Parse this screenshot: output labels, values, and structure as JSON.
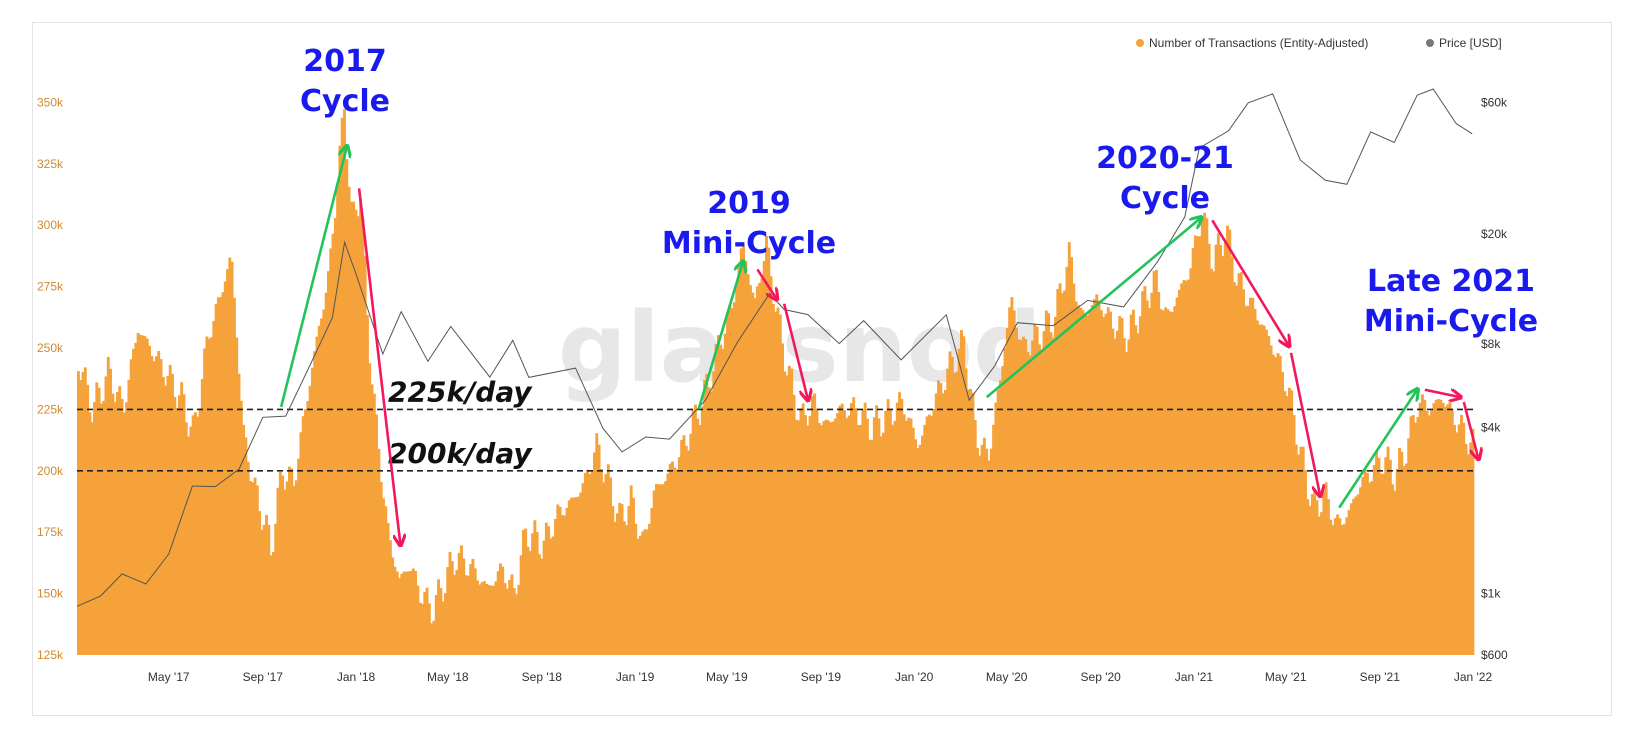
{
  "watermark": "glassnode",
  "colors": {
    "bars": "#f6a23a",
    "price": "#555555",
    "up": "#22c35a",
    "down": "#f2185a",
    "annotation": "#1a1aee",
    "left_ticks": "#d08a2e"
  },
  "chart_data": {
    "type": "bar",
    "title": "",
    "xlabel": "",
    "ylabel": "",
    "legend": {
      "placement": "top-right",
      "entries": [
        {
          "label": "Number of Transactions (Entity-Adjusted)",
          "color": "#f6a23a"
        },
        {
          "label": "Price [USD]",
          "color": "#777777"
        }
      ]
    },
    "grid": false,
    "x_range": [
      "2017-01-01",
      "2022-01-01"
    ],
    "x_ticks": [
      {
        "label": "May '17",
        "date": "2017-05-01"
      },
      {
        "label": "Sep '17",
        "date": "2017-09-01"
      },
      {
        "label": "Jan '18",
        "date": "2018-01-01"
      },
      {
        "label": "May '18",
        "date": "2018-05-01"
      },
      {
        "label": "Sep '18",
        "date": "2018-09-01"
      },
      {
        "label": "Jan '19",
        "date": "2019-01-01"
      },
      {
        "label": "May '19",
        "date": "2019-05-01"
      },
      {
        "label": "Sep '19",
        "date": "2019-09-01"
      },
      {
        "label": "Jan '20",
        "date": "2020-01-01"
      },
      {
        "label": "May '20",
        "date": "2020-05-01"
      },
      {
        "label": "Sep '20",
        "date": "2020-09-01"
      },
      {
        "label": "Jan '21",
        "date": "2021-01-01"
      },
      {
        "label": "May '21",
        "date": "2021-05-01"
      },
      {
        "label": "Sep '21",
        "date": "2021-09-01"
      },
      {
        "label": "Jan '22",
        "date": "2022-01-01"
      }
    ],
    "y_left": {
      "range": [
        125000,
        375000
      ],
      "ticks": [
        {
          "label": "125k",
          "value": 125000
        },
        {
          "label": "150k",
          "value": 150000
        },
        {
          "label": "175k",
          "value": 175000
        },
        {
          "label": "200k",
          "value": 200000
        },
        {
          "label": "225k",
          "value": 225000
        },
        {
          "label": "250k",
          "value": 250000
        },
        {
          "label": "275k",
          "value": 275000
        },
        {
          "label": "300k",
          "value": 300000
        },
        {
          "label": "325k",
          "value": 325000
        },
        {
          "label": "350k",
          "value": 350000
        }
      ]
    },
    "y_right": {
      "scale": "log",
      "range": [
        600,
        100000
      ],
      "ticks": [
        {
          "label": "$600",
          "value": 600
        },
        {
          "label": "$1k",
          "value": 1000
        },
        {
          "label": "$4k",
          "value": 4000
        },
        {
          "label": "$8k",
          "value": 8000
        },
        {
          "label": "$20k",
          "value": 20000
        },
        {
          "label": "$60k",
          "value": 60000
        }
      ]
    },
    "series": [
      {
        "name": "Number of Transactions (Entity-Adjusted)",
        "type": "bar",
        "points": [
          [
            "2017-01-01",
            245000
          ],
          [
            "2017-01-20",
            225000
          ],
          [
            "2017-02-10",
            240000
          ],
          [
            "2017-03-01",
            225000
          ],
          [
            "2017-03-20",
            258000
          ],
          [
            "2017-04-05",
            250000
          ],
          [
            "2017-04-25",
            240000
          ],
          [
            "2017-05-15",
            230000
          ],
          [
            "2017-06-01",
            215000
          ],
          [
            "2017-06-20",
            255000
          ],
          [
            "2017-07-05",
            270000
          ],
          [
            "2017-07-20",
            288000
          ],
          [
            "2017-08-05",
            215000
          ],
          [
            "2017-08-20",
            192000
          ],
          [
            "2017-09-01",
            180000
          ],
          [
            "2017-09-10",
            168000
          ],
          [
            "2017-09-25",
            200000
          ],
          [
            "2017-10-10",
            195000
          ],
          [
            "2017-10-25",
            225000
          ],
          [
            "2017-11-10",
            255000
          ],
          [
            "2017-11-25",
            280000
          ],
          [
            "2017-12-05",
            315000
          ],
          [
            "2017-12-15",
            348000
          ],
          [
            "2017-12-25",
            300000
          ],
          [
            "2018-01-05",
            315000
          ],
          [
            "2018-01-15",
            258000
          ],
          [
            "2018-01-25",
            220000
          ],
          [
            "2018-02-10",
            175000
          ],
          [
            "2018-02-25",
            155000
          ],
          [
            "2018-03-10",
            162000
          ],
          [
            "2018-03-25",
            150000
          ],
          [
            "2018-04-10",
            143000
          ],
          [
            "2018-04-25",
            155000
          ],
          [
            "2018-05-10",
            165000
          ],
          [
            "2018-06-01",
            160000
          ],
          [
            "2018-06-20",
            152000
          ],
          [
            "2018-07-10",
            160000
          ],
          [
            "2018-07-25",
            150000
          ],
          [
            "2018-08-10",
            175000
          ],
          [
            "2018-09-01",
            170000
          ],
          [
            "2018-09-20",
            182000
          ],
          [
            "2018-10-10",
            188000
          ],
          [
            "2018-10-25",
            195000
          ],
          [
            "2018-11-10",
            210000
          ],
          [
            "2018-11-25",
            196000
          ],
          [
            "2018-12-10",
            180000
          ],
          [
            "2018-12-25",
            188000
          ],
          [
            "2019-01-10",
            170000
          ],
          [
            "2019-01-25",
            192000
          ],
          [
            "2019-02-10",
            198000
          ],
          [
            "2019-03-01",
            208000
          ],
          [
            "2019-03-20",
            222000
          ],
          [
            "2019-04-05",
            235000
          ],
          [
            "2019-04-20",
            252000
          ],
          [
            "2019-05-05",
            265000
          ],
          [
            "2019-05-20",
            292000
          ],
          [
            "2019-06-05",
            268000
          ],
          [
            "2019-06-20",
            292000
          ],
          [
            "2019-07-05",
            262000
          ],
          [
            "2019-07-20",
            238000
          ],
          [
            "2019-08-05",
            220000
          ],
          [
            "2019-08-20",
            228000
          ],
          [
            "2019-09-05",
            218000
          ],
          [
            "2019-09-25",
            225000
          ],
          [
            "2019-10-15",
            225000
          ],
          [
            "2019-11-05",
            218000
          ],
          [
            "2019-11-25",
            222000
          ],
          [
            "2019-12-15",
            228000
          ],
          [
            "2020-01-05",
            210000
          ],
          [
            "2020-01-25",
            228000
          ],
          [
            "2020-02-15",
            242000
          ],
          [
            "2020-03-05",
            252000
          ],
          [
            "2020-03-20",
            215000
          ],
          [
            "2020-04-05",
            205000
          ],
          [
            "2020-04-20",
            235000
          ],
          [
            "2020-05-05",
            270000
          ],
          [
            "2020-05-20",
            250000
          ],
          [
            "2020-06-10",
            255000
          ],
          [
            "2020-07-01",
            262000
          ],
          [
            "2020-07-20",
            288000
          ],
          [
            "2020-08-05",
            262000
          ],
          [
            "2020-08-25",
            270000
          ],
          [
            "2020-09-15",
            260000
          ],
          [
            "2020-10-05",
            255000
          ],
          [
            "2020-10-25",
            268000
          ],
          [
            "2020-11-10",
            278000
          ],
          [
            "2020-11-25",
            262000
          ],
          [
            "2020-12-10",
            272000
          ],
          [
            "2020-12-25",
            282000
          ],
          [
            "2021-01-10",
            305000
          ],
          [
            "2021-01-25",
            285000
          ],
          [
            "2021-02-10",
            298000
          ],
          [
            "2021-02-25",
            278000
          ],
          [
            "2021-03-15",
            268000
          ],
          [
            "2021-04-01",
            258000
          ],
          [
            "2021-04-20",
            245000
          ],
          [
            "2021-05-05",
            230000
          ],
          [
            "2021-05-20",
            205000
          ],
          [
            "2021-06-05",
            185000
          ],
          [
            "2021-06-20",
            190000
          ],
          [
            "2021-07-05",
            178000
          ],
          [
            "2021-07-20",
            182000
          ],
          [
            "2021-08-05",
            195000
          ],
          [
            "2021-08-20",
            200000
          ],
          [
            "2021-09-05",
            205000
          ],
          [
            "2021-09-20",
            198000
          ],
          [
            "2021-10-05",
            210000
          ],
          [
            "2021-10-20",
            228000
          ],
          [
            "2021-11-05",
            225000
          ],
          [
            "2021-11-20",
            230000
          ],
          [
            "2021-12-05",
            222000
          ],
          [
            "2021-12-20",
            215000
          ],
          [
            "2021-12-31",
            210000
          ]
        ]
      },
      {
        "name": "Price [USD]",
        "type": "line",
        "points": [
          [
            "2017-01-01",
            900
          ],
          [
            "2017-02-01",
            1000
          ],
          [
            "2017-03-01",
            1150
          ],
          [
            "2017-04-01",
            1100
          ],
          [
            "2017-05-01",
            1400
          ],
          [
            "2017-06-01",
            2400
          ],
          [
            "2017-07-01",
            2500
          ],
          [
            "2017-08-01",
            2800
          ],
          [
            "2017-09-01",
            4300
          ],
          [
            "2017-10-01",
            4500
          ],
          [
            "2017-11-01",
            6500
          ],
          [
            "2017-12-01",
            10000
          ],
          [
            "2017-12-17",
            19000
          ],
          [
            "2018-01-01",
            14000
          ],
          [
            "2018-02-05",
            7500
          ],
          [
            "2018-03-01",
            10500
          ],
          [
            "2018-04-05",
            6800
          ],
          [
            "2018-05-05",
            9500
          ],
          [
            "2018-06-25",
            6000
          ],
          [
            "2018-07-25",
            8200
          ],
          [
            "2018-08-15",
            6200
          ],
          [
            "2018-10-15",
            6400
          ],
          [
            "2018-11-20",
            4000
          ],
          [
            "2018-12-15",
            3300
          ],
          [
            "2019-01-15",
            3600
          ],
          [
            "2019-02-15",
            3700
          ],
          [
            "2019-04-03",
            5000
          ],
          [
            "2019-05-15",
            8000
          ],
          [
            "2019-06-26",
            12500
          ],
          [
            "2019-07-15",
            10500
          ],
          [
            "2019-08-15",
            10200
          ],
          [
            "2019-09-25",
            8200
          ],
          [
            "2019-10-27",
            9500
          ],
          [
            "2019-12-15",
            7100
          ],
          [
            "2020-02-12",
            10300
          ],
          [
            "2020-03-13",
            4900
          ],
          [
            "2020-04-15",
            6800
          ],
          [
            "2020-05-15",
            9500
          ],
          [
            "2020-07-01",
            9200
          ],
          [
            "2020-08-15",
            11800
          ],
          [
            "2020-10-01",
            10700
          ],
          [
            "2020-11-15",
            16000
          ],
          [
            "2020-12-20",
            23500
          ],
          [
            "2021-01-08",
            40000
          ],
          [
            "2021-02-15",
            48000
          ],
          [
            "2021-03-13",
            60000
          ],
          [
            "2021-04-14",
            63000
          ],
          [
            "2021-05-20",
            38000
          ],
          [
            "2021-06-22",
            31000
          ],
          [
            "2021-07-20",
            30000
          ],
          [
            "2021-08-20",
            48000
          ],
          [
            "2021-09-20",
            42000
          ],
          [
            "2021-10-20",
            64000
          ],
          [
            "2021-11-10",
            68000
          ],
          [
            "2021-12-10",
            49000
          ],
          [
            "2021-12-31",
            47000
          ]
        ]
      }
    ],
    "reference_lines": [
      {
        "label": "225k/day",
        "value": 225000
      },
      {
        "label": "200k/day",
        "value": 200000
      }
    ],
    "annotations": [
      {
        "lines": [
          "2017",
          "Cycle"
        ],
        "date": "2017-12-01"
      },
      {
        "lines": [
          "2019",
          "Mini-Cycle"
        ],
        "date": "2019-05-15"
      },
      {
        "lines": [
          "2020-21",
          "Cycle"
        ],
        "date": "2021-01-01"
      },
      {
        "lines": [
          "Late 2021",
          "Mini-Cycle"
        ],
        "date": "2021-12-01"
      }
    ],
    "trend_arrows": [
      {
        "direction": "up",
        "from": [
          "2017-09-25",
          226000
        ],
        "to": [
          "2017-12-20",
          332000
        ]
      },
      {
        "direction": "down",
        "from": [
          "2018-01-05",
          315000
        ],
        "to": [
          "2018-02-28",
          170000
        ]
      },
      {
        "direction": "up",
        "from": [
          "2019-03-25",
          225000
        ],
        "to": [
          "2019-05-22",
          285000
        ]
      },
      {
        "direction": "down",
        "from": [
          "2019-06-10",
          282000
        ],
        "to": [
          "2019-07-05",
          270000
        ]
      },
      {
        "direction": "down",
        "from": [
          "2019-07-15",
          268000
        ],
        "to": [
          "2019-08-15",
          229000
        ]
      },
      {
        "direction": "up",
        "from": [
          "2020-04-05",
          230000
        ],
        "to": [
          "2021-01-10",
          303000
        ]
      },
      {
        "direction": "down",
        "from": [
          "2021-01-25",
          302000
        ],
        "to": [
          "2021-05-05",
          251000
        ]
      },
      {
        "direction": "down",
        "from": [
          "2021-05-08",
          248000
        ],
        "to": [
          "2021-06-15",
          190000
        ]
      },
      {
        "direction": "up",
        "from": [
          "2021-07-10",
          185000
        ],
        "to": [
          "2021-10-20",
          233000
        ]
      },
      {
        "direction": "down",
        "from": [
          "2021-10-30",
          233000
        ],
        "to": [
          "2021-12-15",
          230000
        ]
      },
      {
        "direction": "down",
        "from": [
          "2021-12-20",
          228000
        ],
        "to": [
          "2022-01-08",
          205000
        ]
      }
    ]
  }
}
